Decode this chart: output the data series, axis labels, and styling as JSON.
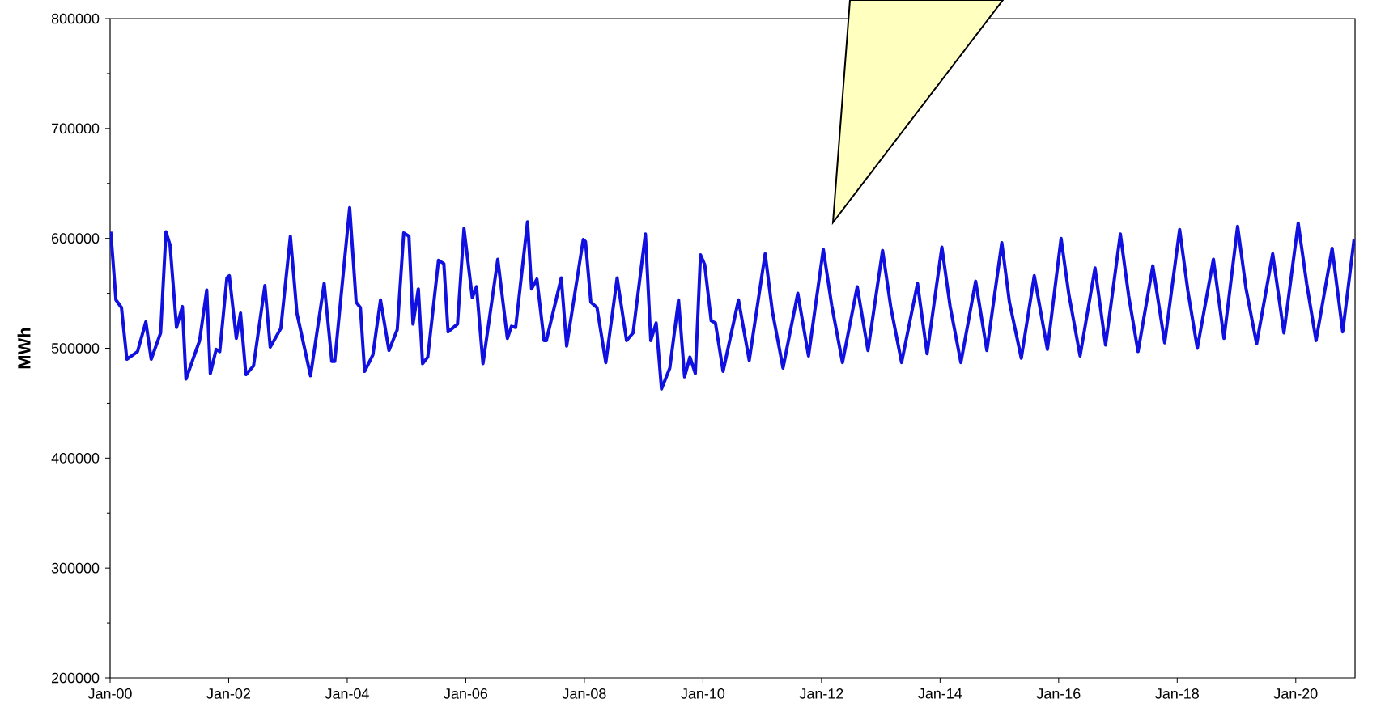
{
  "chart_data": {
    "type": "line",
    "ylabel": "MWh",
    "x": [
      "2000-01-05",
      "2000-02-06",
      "2000-03-11",
      "2000-04-13",
      "2000-06-18",
      "2000-08-08",
      "2000-09-10",
      "2000-11-07",
      "2000-12-10",
      "2001-01-05",
      "2001-02-14",
      "2001-03-22",
      "2001-04-13",
      "2001-07-06",
      "2001-08-19",
      "2001-09-10",
      "2001-10-16",
      "2001-11-07",
      "2001-12-21",
      "2002-01-05",
      "2002-02-17",
      "2002-03-15",
      "2002-04-17",
      "2002-06-03",
      "2002-08-12",
      "2002-09-14",
      "2002-11-18",
      "2003-01-16",
      "2003-02-25",
      "2003-05-20",
      "2003-08-12",
      "2003-09-28",
      "2003-10-16",
      "2004-01-16",
      "2004-02-25",
      "2004-03-22",
      "2004-04-17",
      "2004-06-07",
      "2004-07-24",
      "2004-09-14",
      "2004-11-04",
      "2004-12-14",
      "2005-01-16",
      "2005-02-10",
      "2005-03-15",
      "2005-04-10",
      "2005-05-12",
      "2005-07-17",
      "2005-08-19",
      "2005-09-14",
      "2005-11-11",
      "2005-12-21",
      "2006-02-10",
      "2006-03-08",
      "2006-04-17",
      "2006-07-17",
      "2006-09-14",
      "2006-10-09",
      "2006-11-04",
      "2007-01-16",
      "2007-02-10",
      "2007-03-15",
      "2007-04-28",
      "2007-05-12",
      "2007-08-12",
      "2007-09-14",
      "2007-12-25",
      "2008-01-08",
      "2008-02-10",
      "2008-03-19",
      "2008-05-12",
      "2008-07-21",
      "2008-09-17",
      "2008-10-27",
      "2009-01-12",
      "2009-02-14",
      "2009-03-19",
      "2009-04-21",
      "2009-06-11",
      "2009-08-04",
      "2009-09-10",
      "2009-10-13",
      "2009-11-15",
      "2009-12-17",
      "2010-01-12",
      "2010-02-21",
      "2010-03-19",
      "2010-05-05",
      "2010-08-08",
      "2010-10-13",
      "2011-01-19",
      "2011-03-04",
      "2011-05-09",
      "2011-08-08",
      "2011-10-13",
      "2012-01-12",
      "2012-03-04",
      "2012-05-09",
      "2012-08-08",
      "2012-10-13",
      "2013-01-12",
      "2013-03-04",
      "2013-05-09",
      "2013-08-15",
      "2013-10-13",
      "2014-01-12",
      "2014-03-04",
      "2014-05-09",
      "2014-08-08",
      "2014-10-16",
      "2015-01-16",
      "2015-03-04",
      "2015-05-16",
      "2015-08-04",
      "2015-10-24",
      "2016-01-16",
      "2016-03-04",
      "2016-05-12",
      "2016-08-12",
      "2016-10-16",
      "2017-01-16",
      "2017-03-08",
      "2017-05-05",
      "2017-08-04",
      "2017-10-16",
      "2018-01-16",
      "2018-03-08",
      "2018-05-05",
      "2018-08-12",
      "2018-10-16",
      "2019-01-08",
      "2019-02-28",
      "2019-05-05",
      "2019-08-12",
      "2019-10-20",
      "2020-01-16",
      "2020-03-08",
      "2020-05-05",
      "2020-08-12",
      "2020-10-16",
      "2020-12-25"
    ],
    "series": [
      {
        "color": "#1010e0",
        "values": [
          606000,
          544000,
          537000,
          490000,
          497000,
          524000,
          490000,
          514000,
          606000,
          594000,
          519000,
          538000,
          472000,
          507000,
          553000,
          477000,
          499000,
          497000,
          564000,
          566000,
          509000,
          532000,
          476000,
          484000,
          557000,
          501000,
          518000,
          602000,
          532000,
          475000,
          559000,
          488000,
          488000,
          628000,
          542000,
          537000,
          479000,
          494000,
          544000,
          498000,
          517000,
          605000,
          602000,
          522000,
          554000,
          486000,
          492000,
          580000,
          577000,
          515000,
          522000,
          609000,
          546000,
          556000,
          486000,
          581000,
          509000,
          520000,
          519000,
          615000,
          554000,
          563000,
          507000,
          507000,
          564000,
          502000,
          599000,
          597000,
          542000,
          537000,
          487000,
          564000,
          507000,
          514000,
          604000,
          507000,
          523000,
          463000,
          482000,
          544000,
          474000,
          492000,
          477000,
          585000,
          576000,
          525000,
          523000,
          479000,
          544000,
          489000,
          586000,
          534000,
          482000,
          550000,
          493000,
          590000,
          539000,
          487000,
          556000,
          498000,
          589000,
          537000,
          487000,
          559000,
          495000,
          592000,
          538000,
          487000,
          561000,
          498000,
          596000,
          542000,
          491000,
          566000,
          499000,
          600000,
          549000,
          493000,
          573000,
          503000,
          604000,
          548000,
          497000,
          575000,
          505000,
          608000,
          552000,
          500000,
          581000,
          509000,
          611000,
          555000,
          504000,
          586000,
          514000,
          614000,
          559000,
          507000,
          591000,
          515000,
          599000
        ]
      }
    ],
    "xlim": [
      "2000-01-01",
      "2021-01-01"
    ],
    "ylim": [
      200000,
      800000
    ],
    "xticks": [
      {
        "value": "2000-01-01",
        "label": "Jan-00"
      },
      {
        "value": "2002-01-01",
        "label": "Jan-02"
      },
      {
        "value": "2004-01-01",
        "label": "Jan-04"
      },
      {
        "value": "2006-01-01",
        "label": "Jan-06"
      },
      {
        "value": "2008-01-01",
        "label": "Jan-08"
      },
      {
        "value": "2010-01-01",
        "label": "Jan-10"
      },
      {
        "value": "2012-01-01",
        "label": "Jan-12"
      },
      {
        "value": "2014-01-01",
        "label": "Jan-14"
      },
      {
        "value": "2016-01-01",
        "label": "Jan-16"
      },
      {
        "value": "2018-01-01",
        "label": "Jan-18"
      },
      {
        "value": "2020-01-01",
        "label": "Jan-20"
      }
    ],
    "yticks": [
      200000,
      300000,
      400000,
      500000,
      600000,
      700000,
      800000
    ],
    "grid": false
  }
}
